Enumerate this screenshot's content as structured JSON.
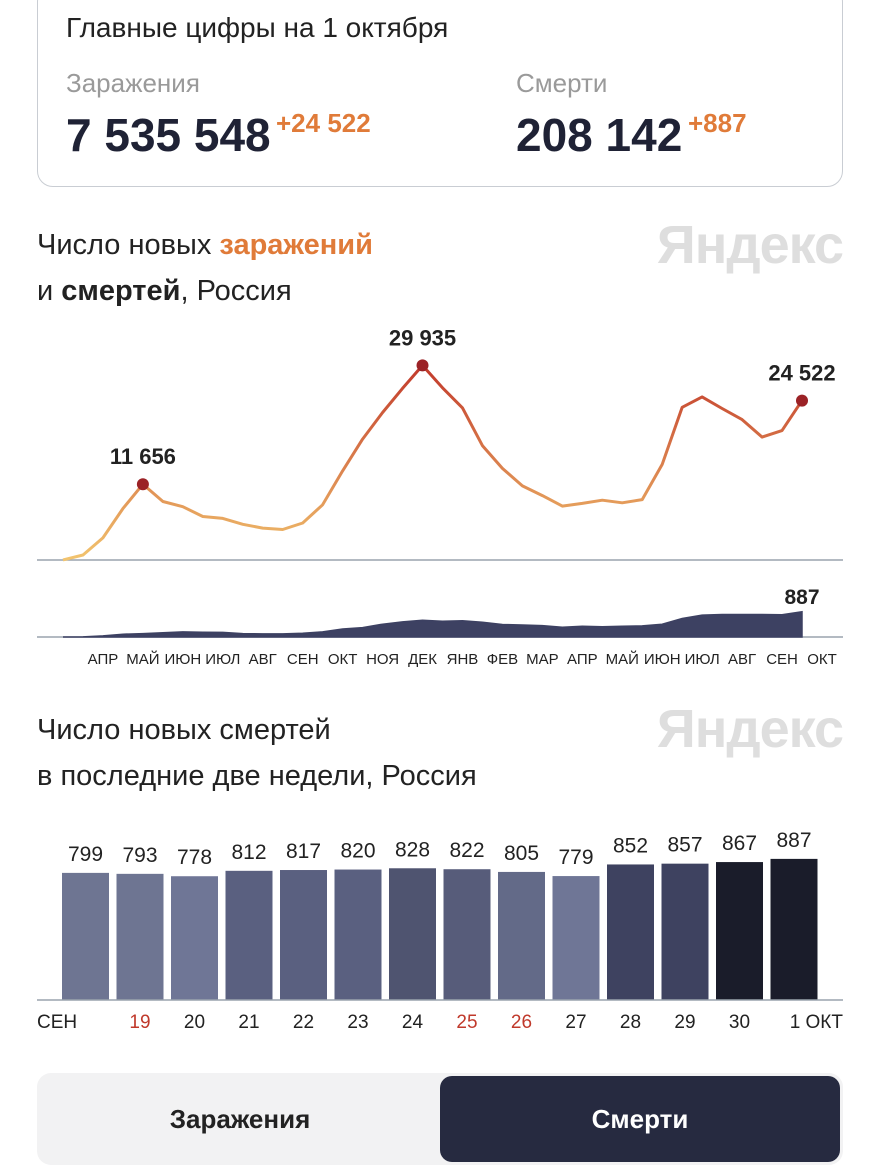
{
  "header": {
    "title": "Главные цифры на 1 октября",
    "infections_label": "Заражения",
    "infections": "7 535 548",
    "infections_delta": "+24 522",
    "deaths_label": "Смерти",
    "deaths": "208 142",
    "deaths_delta": "+887"
  },
  "chart_data": [
    {
      "type": "line",
      "title": [
        "Число новых",
        "заражений",
        "и",
        "смертей",
        ", Россия"
      ],
      "watermark": "Яндекс",
      "categories": [
        null,
        "АПР",
        null,
        "МАЙ",
        null,
        "ИЮН",
        null,
        "ИЮЛ",
        null,
        "АВГ",
        null,
        "СЕН",
        null,
        "ОКТ",
        null,
        "НОЯ",
        null,
        "ДЕК",
        null,
        "ЯНВ",
        null,
        "ФЕВ",
        null,
        "МАР",
        null,
        "АПР",
        null,
        "МАЙ",
        null,
        "ИЮН",
        null,
        "ИЮЛ",
        null,
        "АВГ",
        null,
        "СЕН",
        null,
        "ОКТ"
      ],
      "series": [
        {
          "color": [
            "#f2c46e",
            "#c23a2b"
          ],
          "marker_color": "#9b2226",
          "values": [
            20,
            770,
            3400,
            7900,
            11656,
            9000,
            8200,
            6700,
            6400,
            5500,
            4900,
            4700,
            5700,
            8500,
            13700,
            18600,
            22700,
            26400,
            29935,
            26500,
            23400,
            17600,
            14100,
            11400,
            9900,
            8300,
            8700,
            9200,
            8800,
            9300,
            14700,
            23500,
            25100,
            23300,
            21600,
            18900,
            19900,
            24522
          ],
          "value_labels": [
            null,
            null,
            null,
            null,
            "11 656",
            null,
            null,
            null,
            null,
            null,
            null,
            null,
            null,
            null,
            null,
            null,
            null,
            null,
            "29 935",
            null,
            null,
            null,
            null,
            null,
            null,
            null,
            null,
            null,
            null,
            null,
            null,
            null,
            null,
            null,
            null,
            null,
            null,
            "24 522"
          ]
        },
        {
          "axis": "y2",
          "color": "#3d4162",
          "label_last": true,
          "values": [
            0,
            5,
            40,
            100,
            120,
            150,
            180,
            170,
            160,
            120,
            110,
            110,
            130,
            180,
            280,
            330,
            450,
            530,
            590,
            550,
            570,
            520,
            440,
            420,
            400,
            340,
            380,
            360,
            380,
            390,
            450,
            650,
            770,
            790,
            790,
            790,
            780,
            887
          ]
        }
      ],
      "ylim": [
        0,
        36000
      ],
      "y2lim": [
        0,
        2600
      ]
    },
    {
      "type": "bar",
      "title": [
        "Число новых смертей",
        "в последние две недели, Россия"
      ],
      "watermark": "Яндекс",
      "categories": [
        "СЕН",
        "19",
        "20",
        "21",
        "22",
        "23",
        "24",
        "25",
        "26",
        "27",
        "28",
        "29",
        "30",
        "1 ОКТ"
      ],
      "category_colors": [
        "#222222",
        "#c0392b",
        "#222222",
        "#222222",
        "#222222",
        "#222222",
        "#222222",
        "#c0392b",
        "#c0392b",
        "#222222",
        "#222222",
        "#222222",
        "#222222",
        "#222222"
      ],
      "values": [
        799,
        793,
        778,
        812,
        817,
        820,
        828,
        822,
        805,
        779,
        852,
        857,
        867,
        887
      ],
      "colors": [
        "#6e7592",
        "#6e7592",
        "#6f7696",
        "#5a6080",
        "#5a6080",
        "#5a6080",
        "#4f5470",
        "#575c7a",
        "#636a88",
        "#6f7696",
        "#3e4260",
        "#3e4260",
        "#1a1c2a",
        "#1a1c2a"
      ],
      "ylim": [
        0,
        1100
      ]
    }
  ],
  "tabs": [
    {
      "label": "Заражения",
      "active": false
    },
    {
      "label": "Смерти",
      "active": true
    }
  ]
}
